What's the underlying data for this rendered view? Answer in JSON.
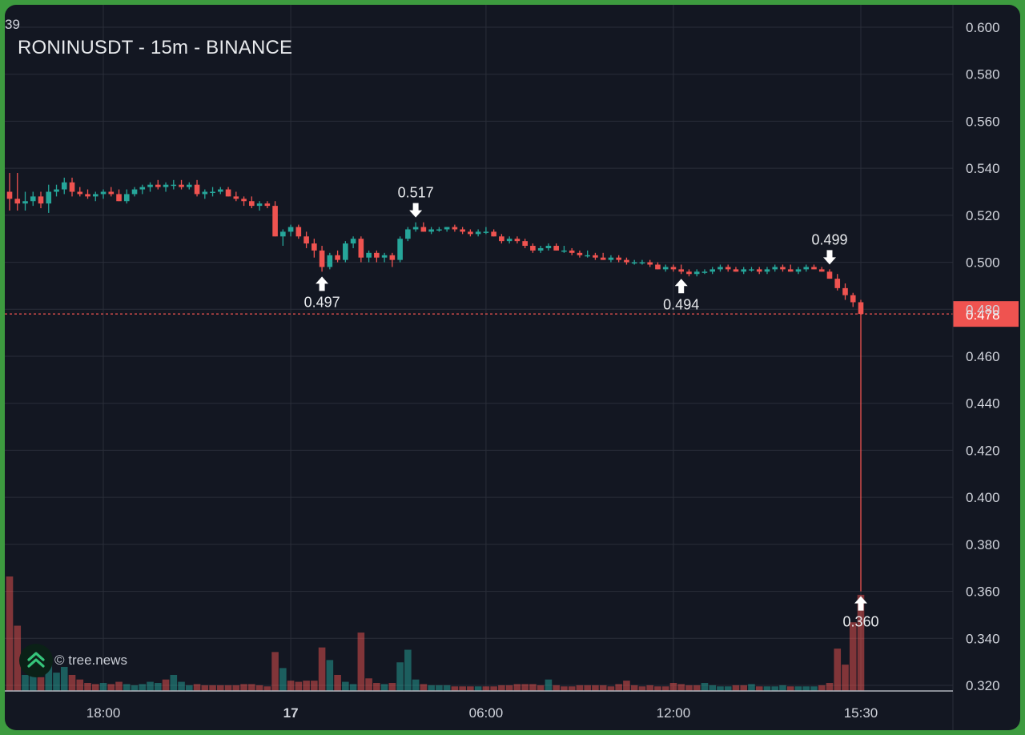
{
  "header": {
    "title": "RONINUSDT - 15m - BINANCE",
    "corner_value": "39"
  },
  "watermark": {
    "text": "© tree.news",
    "logo": "tree-news-logo-icon"
  },
  "colors": {
    "background": "#131722",
    "up": "#26a69a",
    "down": "#ef5350",
    "grid": "#2a2e39",
    "price_tag": "#ef5350",
    "text": "#d1d4dc"
  },
  "chart_data": {
    "type": "candlestick",
    "symbol": "RONINUSDT",
    "interval": "15m",
    "exchange": "BINANCE",
    "y_ticks": [
      "0.600",
      "0.580",
      "0.560",
      "0.540",
      "0.520",
      "0.500",
      "0.480",
      "0.460",
      "0.440",
      "0.420",
      "0.400",
      "0.380",
      "0.360",
      "0.340",
      "0.320"
    ],
    "ylim": [
      0.318,
      0.604
    ],
    "x_ticks": [
      "18:00",
      "17",
      "06:00",
      "12:00",
      "15:30"
    ],
    "last_price": "0.478",
    "annotations": [
      {
        "label": "0.517",
        "value": 0.517,
        "kind": "high"
      },
      {
        "label": "0.497",
        "value": 0.497,
        "kind": "low"
      },
      {
        "label": "0.494",
        "value": 0.494,
        "kind": "low"
      },
      {
        "label": "0.499",
        "value": 0.499,
        "kind": "high"
      },
      {
        "label": "0.360",
        "value": 0.36,
        "kind": "low"
      }
    ],
    "ohlc": [
      [
        0.53,
        0.538,
        0.522,
        0.527
      ],
      [
        0.527,
        0.538,
        0.522,
        0.525
      ],
      [
        0.525,
        0.53,
        0.522,
        0.526
      ],
      [
        0.526,
        0.53,
        0.524,
        0.528
      ],
      [
        0.528,
        0.53,
        0.523,
        0.525
      ],
      [
        0.525,
        0.533,
        0.521,
        0.53
      ],
      [
        0.53,
        0.533,
        0.528,
        0.531
      ],
      [
        0.531,
        0.536,
        0.529,
        0.534
      ],
      [
        0.534,
        0.536,
        0.528,
        0.53
      ],
      [
        0.53,
        0.532,
        0.528,
        0.529
      ],
      [
        0.529,
        0.531,
        0.527,
        0.528
      ],
      [
        0.528,
        0.53,
        0.526,
        0.529
      ],
      [
        0.529,
        0.531,
        0.527,
        0.53
      ],
      [
        0.53,
        0.532,
        0.528,
        0.529
      ],
      [
        0.529,
        0.531,
        0.526,
        0.526
      ],
      [
        0.526,
        0.531,
        0.525,
        0.529
      ],
      [
        0.529,
        0.532,
        0.528,
        0.531
      ],
      [
        0.531,
        0.533,
        0.529,
        0.532
      ],
      [
        0.532,
        0.534,
        0.53,
        0.533
      ],
      [
        0.533,
        0.535,
        0.531,
        0.532
      ],
      [
        0.532,
        0.534,
        0.53,
        0.533
      ],
      [
        0.533,
        0.535,
        0.531,
        0.533
      ],
      [
        0.533,
        0.535,
        0.531,
        0.532
      ],
      [
        0.532,
        0.534,
        0.531,
        0.533
      ],
      [
        0.533,
        0.535,
        0.528,
        0.529
      ],
      [
        0.529,
        0.531,
        0.527,
        0.53
      ],
      [
        0.53,
        0.532,
        0.528,
        0.53
      ],
      [
        0.53,
        0.532,
        0.529,
        0.531
      ],
      [
        0.531,
        0.532,
        0.528,
        0.528
      ],
      [
        0.528,
        0.53,
        0.526,
        0.527
      ],
      [
        0.527,
        0.528,
        0.524,
        0.526
      ],
      [
        0.526,
        0.528,
        0.523,
        0.524
      ],
      [
        0.524,
        0.526,
        0.522,
        0.525
      ],
      [
        0.525,
        0.526,
        0.523,
        0.524
      ],
      [
        0.524,
        0.526,
        0.511,
        0.511
      ],
      [
        0.511,
        0.514,
        0.507,
        0.513
      ],
      [
        0.513,
        0.516,
        0.511,
        0.515
      ],
      [
        0.515,
        0.516,
        0.51,
        0.511
      ],
      [
        0.511,
        0.513,
        0.506,
        0.508
      ],
      [
        0.508,
        0.51,
        0.502,
        0.505
      ],
      [
        0.505,
        0.507,
        0.496,
        0.498
      ],
      [
        0.498,
        0.504,
        0.497,
        0.503
      ],
      [
        0.503,
        0.505,
        0.5,
        0.501
      ],
      [
        0.501,
        0.509,
        0.5,
        0.508
      ],
      [
        0.508,
        0.511,
        0.506,
        0.51
      ],
      [
        0.51,
        0.511,
        0.5,
        0.502
      ],
      [
        0.502,
        0.505,
        0.5,
        0.504
      ],
      [
        0.504,
        0.505,
        0.5,
        0.502
      ],
      [
        0.502,
        0.504,
        0.5,
        0.503
      ],
      [
        0.503,
        0.504,
        0.498,
        0.501
      ],
      [
        0.501,
        0.511,
        0.5,
        0.51
      ],
      [
        0.51,
        0.515,
        0.509,
        0.514
      ],
      [
        0.514,
        0.517,
        0.513,
        0.515
      ],
      [
        0.515,
        0.517,
        0.513,
        0.513
      ],
      [
        0.513,
        0.515,
        0.512,
        0.514
      ],
      [
        0.514,
        0.515,
        0.513,
        0.514
      ],
      [
        0.514,
        0.515,
        0.513,
        0.515
      ],
      [
        0.515,
        0.516,
        0.513,
        0.514
      ],
      [
        0.514,
        0.515,
        0.512,
        0.513
      ],
      [
        0.513,
        0.514,
        0.511,
        0.512
      ],
      [
        0.512,
        0.514,
        0.511,
        0.513
      ],
      [
        0.513,
        0.515,
        0.512,
        0.513
      ],
      [
        0.513,
        0.514,
        0.511,
        0.511
      ],
      [
        0.511,
        0.512,
        0.508,
        0.509
      ],
      [
        0.509,
        0.511,
        0.508,
        0.51
      ],
      [
        0.51,
        0.511,
        0.508,
        0.509
      ],
      [
        0.509,
        0.51,
        0.506,
        0.507
      ],
      [
        0.507,
        0.508,
        0.504,
        0.505
      ],
      [
        0.505,
        0.507,
        0.504,
        0.506
      ],
      [
        0.506,
        0.508,
        0.505,
        0.507
      ],
      [
        0.507,
        0.508,
        0.505,
        0.505
      ],
      [
        0.505,
        0.507,
        0.504,
        0.505
      ],
      [
        0.505,
        0.506,
        0.503,
        0.504
      ],
      [
        0.504,
        0.505,
        0.502,
        0.503
      ],
      [
        0.503,
        0.505,
        0.502,
        0.503
      ],
      [
        0.503,
        0.504,
        0.501,
        0.502
      ],
      [
        0.502,
        0.504,
        0.501,
        0.501
      ],
      [
        0.501,
        0.503,
        0.5,
        0.502
      ],
      [
        0.502,
        0.503,
        0.5,
        0.501
      ],
      [
        0.501,
        0.502,
        0.499,
        0.5
      ],
      [
        0.5,
        0.501,
        0.499,
        0.5
      ],
      [
        0.5,
        0.501,
        0.499,
        0.5
      ],
      [
        0.5,
        0.501,
        0.498,
        0.499
      ],
      [
        0.499,
        0.5,
        0.497,
        0.497
      ],
      [
        0.497,
        0.499,
        0.496,
        0.498
      ],
      [
        0.498,
        0.499,
        0.496,
        0.497
      ],
      [
        0.497,
        0.499,
        0.495,
        0.496
      ],
      [
        0.496,
        0.497,
        0.494,
        0.495
      ],
      [
        0.495,
        0.497,
        0.494,
        0.496
      ],
      [
        0.496,
        0.497,
        0.495,
        0.496
      ],
      [
        0.496,
        0.498,
        0.495,
        0.497
      ],
      [
        0.497,
        0.499,
        0.496,
        0.498
      ],
      [
        0.498,
        0.499,
        0.496,
        0.497
      ],
      [
        0.497,
        0.498,
        0.496,
        0.496
      ],
      [
        0.496,
        0.498,
        0.495,
        0.497
      ],
      [
        0.497,
        0.498,
        0.496,
        0.497
      ],
      [
        0.497,
        0.498,
        0.495,
        0.496
      ],
      [
        0.496,
        0.498,
        0.495,
        0.497
      ],
      [
        0.497,
        0.499,
        0.496,
        0.498
      ],
      [
        0.498,
        0.499,
        0.496,
        0.497
      ],
      [
        0.497,
        0.499,
        0.496,
        0.496
      ],
      [
        0.496,
        0.498,
        0.495,
        0.497
      ],
      [
        0.497,
        0.499,
        0.496,
        0.498
      ],
      [
        0.498,
        0.499,
        0.497,
        0.497
      ],
      [
        0.497,
        0.498,
        0.496,
        0.496
      ],
      [
        0.496,
        0.497,
        0.493,
        0.493
      ],
      [
        0.493,
        0.495,
        0.488,
        0.489
      ],
      [
        0.489,
        0.491,
        0.484,
        0.486
      ],
      [
        0.486,
        0.487,
        0.481,
        0.483
      ],
      [
        0.483,
        0.484,
        0.36,
        0.478
      ]
    ],
    "volume": [
      [
        1.0,
        "down"
      ],
      [
        0.57,
        "down"
      ],
      [
        0.14,
        "up"
      ],
      [
        0.19,
        "up"
      ],
      [
        0.12,
        "down"
      ],
      [
        0.23,
        "up"
      ],
      [
        0.16,
        "up"
      ],
      [
        0.21,
        "up"
      ],
      [
        0.14,
        "down"
      ],
      [
        0.1,
        "down"
      ],
      [
        0.07,
        "down"
      ],
      [
        0.06,
        "down"
      ],
      [
        0.07,
        "up"
      ],
      [
        0.06,
        "down"
      ],
      [
        0.08,
        "down"
      ],
      [
        0.06,
        "up"
      ],
      [
        0.05,
        "up"
      ],
      [
        0.06,
        "up"
      ],
      [
        0.08,
        "up"
      ],
      [
        0.07,
        "up"
      ],
      [
        0.1,
        "down"
      ],
      [
        0.14,
        "up"
      ],
      [
        0.08,
        "up"
      ],
      [
        0.05,
        "up"
      ],
      [
        0.06,
        "down"
      ],
      [
        0.05,
        "down"
      ],
      [
        0.05,
        "down"
      ],
      [
        0.05,
        "down"
      ],
      [
        0.05,
        "down"
      ],
      [
        0.05,
        "down"
      ],
      [
        0.06,
        "down"
      ],
      [
        0.06,
        "down"
      ],
      [
        0.05,
        "down"
      ],
      [
        0.04,
        "down"
      ],
      [
        0.34,
        "down"
      ],
      [
        0.2,
        "up"
      ],
      [
        0.09,
        "down"
      ],
      [
        0.08,
        "down"
      ],
      [
        0.09,
        "down"
      ],
      [
        0.09,
        "down"
      ],
      [
        0.38,
        "down"
      ],
      [
        0.27,
        "up"
      ],
      [
        0.14,
        "down"
      ],
      [
        0.08,
        "up"
      ],
      [
        0.06,
        "up"
      ],
      [
        0.51,
        "down"
      ],
      [
        0.11,
        "down"
      ],
      [
        0.07,
        "down"
      ],
      [
        0.06,
        "up"
      ],
      [
        0.07,
        "down"
      ],
      [
        0.25,
        "up"
      ],
      [
        0.36,
        "up"
      ],
      [
        0.1,
        "up"
      ],
      [
        0.06,
        "down"
      ],
      [
        0.05,
        "up"
      ],
      [
        0.05,
        "up"
      ],
      [
        0.05,
        "up"
      ],
      [
        0.04,
        "down"
      ],
      [
        0.04,
        "down"
      ],
      [
        0.04,
        "down"
      ],
      [
        0.04,
        "up"
      ],
      [
        0.04,
        "down"
      ],
      [
        0.04,
        "down"
      ],
      [
        0.05,
        "down"
      ],
      [
        0.05,
        "down"
      ],
      [
        0.06,
        "down"
      ],
      [
        0.06,
        "down"
      ],
      [
        0.06,
        "down"
      ],
      [
        0.05,
        "down"
      ],
      [
        0.1,
        "up"
      ],
      [
        0.05,
        "down"
      ],
      [
        0.04,
        "down"
      ],
      [
        0.04,
        "down"
      ],
      [
        0.05,
        "down"
      ],
      [
        0.05,
        "down"
      ],
      [
        0.05,
        "down"
      ],
      [
        0.05,
        "down"
      ],
      [
        0.04,
        "down"
      ],
      [
        0.06,
        "down"
      ],
      [
        0.09,
        "down"
      ],
      [
        0.05,
        "down"
      ],
      [
        0.04,
        "down"
      ],
      [
        0.05,
        "down"
      ],
      [
        0.04,
        "down"
      ],
      [
        0.04,
        "down"
      ],
      [
        0.07,
        "down"
      ],
      [
        0.06,
        "down"
      ],
      [
        0.05,
        "down"
      ],
      [
        0.05,
        "down"
      ],
      [
        0.07,
        "up"
      ],
      [
        0.05,
        "up"
      ],
      [
        0.04,
        "up"
      ],
      [
        0.04,
        "up"
      ],
      [
        0.05,
        "down"
      ],
      [
        0.05,
        "down"
      ],
      [
        0.06,
        "up"
      ],
      [
        0.04,
        "down"
      ],
      [
        0.04,
        "up"
      ],
      [
        0.04,
        "up"
      ],
      [
        0.05,
        "up"
      ],
      [
        0.04,
        "down"
      ],
      [
        0.04,
        "up"
      ],
      [
        0.04,
        "up"
      ],
      [
        0.04,
        "up"
      ],
      [
        0.05,
        "down"
      ],
      [
        0.07,
        "down"
      ],
      [
        0.37,
        "down"
      ],
      [
        0.23,
        "down"
      ],
      [
        0.6,
        "down"
      ],
      [
        0.84,
        "down"
      ]
    ]
  }
}
